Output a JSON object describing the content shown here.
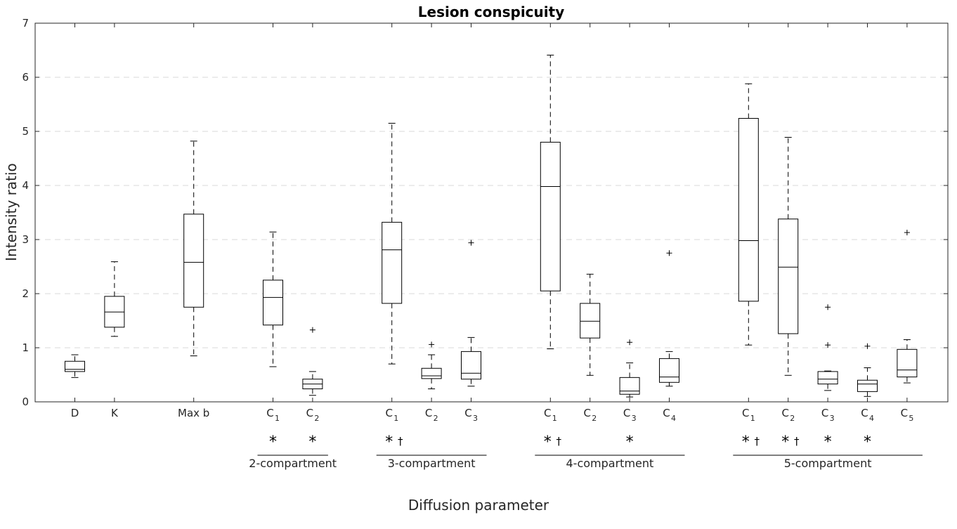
{
  "chart_data": {
    "type": "box",
    "title": "Lesion conspicuity",
    "xlabel": "Diffusion parameter",
    "ylabel": "Intensity ratio",
    "ylim": [
      0,
      7
    ],
    "yticks": [
      0,
      1,
      2,
      3,
      4,
      5,
      6,
      7
    ],
    "grid": "horizontal dashed",
    "significance_legend": {
      "star": "*",
      "dagger": "†"
    },
    "categories": [
      {
        "id": "D",
        "label": "D",
        "sub": "",
        "pos": 1,
        "whisker_low": 0.45,
        "q1": 0.56,
        "median": 0.6,
        "q3": 0.75,
        "whisker_high": 0.87,
        "outliers": [],
        "marks": ""
      },
      {
        "id": "K",
        "label": "K",
        "sub": "",
        "pos": 2,
        "whisker_low": 1.21,
        "q1": 1.38,
        "median": 1.66,
        "q3": 1.95,
        "whisker_high": 2.59,
        "outliers": [],
        "marks": ""
      },
      {
        "id": "Maxb",
        "label": "Max b",
        "sub": "",
        "pos": 4,
        "whisker_low": 0.85,
        "q1": 1.75,
        "median": 2.58,
        "q3": 3.47,
        "whisker_high": 4.82,
        "outliers": [],
        "marks": ""
      },
      {
        "id": "c2_C1",
        "label": "C",
        "sub": "1",
        "pos": 6,
        "whisker_low": 0.65,
        "q1": 1.42,
        "median": 1.93,
        "q3": 2.25,
        "whisker_high": 3.14,
        "outliers": [],
        "marks": "*"
      },
      {
        "id": "c2_C2",
        "label": "C",
        "sub": "2",
        "pos": 7,
        "whisker_low": 0.12,
        "q1": 0.24,
        "median": 0.33,
        "q3": 0.42,
        "whisker_high": 0.56,
        "outliers": [
          1.33
        ],
        "marks": "*"
      },
      {
        "id": "c3_C1",
        "label": "C",
        "sub": "1",
        "pos": 9,
        "whisker_low": 0.7,
        "q1": 1.82,
        "median": 2.81,
        "q3": 3.32,
        "whisker_high": 5.15,
        "outliers": [],
        "marks": "*†"
      },
      {
        "id": "c3_C2",
        "label": "C",
        "sub": "2",
        "pos": 10,
        "whisker_low": 0.24,
        "q1": 0.43,
        "median": 0.48,
        "q3": 0.62,
        "whisker_high": 0.87,
        "outliers": [
          1.06
        ],
        "marks": ""
      },
      {
        "id": "c3_C3",
        "label": "C",
        "sub": "3",
        "pos": 11,
        "whisker_low": 0.29,
        "q1": 0.42,
        "median": 0.53,
        "q3": 0.93,
        "whisker_high": 1.19,
        "outliers": [
          2.94
        ],
        "marks": ""
      },
      {
        "id": "c4_C1",
        "label": "C",
        "sub": "1",
        "pos": 13,
        "whisker_low": 0.98,
        "q1": 2.05,
        "median": 3.98,
        "q3": 4.8,
        "whisker_high": 6.41,
        "outliers": [],
        "marks": "*†"
      },
      {
        "id": "c4_C2",
        "label": "C",
        "sub": "2",
        "pos": 14,
        "whisker_low": 0.49,
        "q1": 1.18,
        "median": 1.49,
        "q3": 1.82,
        "whisker_high": 2.36,
        "outliers": [],
        "marks": ""
      },
      {
        "id": "c4_C3",
        "label": "C",
        "sub": "3",
        "pos": 15,
        "whisker_low": 0.09,
        "q1": 0.14,
        "median": 0.2,
        "q3": 0.45,
        "whisker_high": 0.72,
        "outliers": [
          1.1
        ],
        "marks": "*"
      },
      {
        "id": "c4_C4",
        "label": "C",
        "sub": "4",
        "pos": 16,
        "whisker_low": 0.29,
        "q1": 0.36,
        "median": 0.46,
        "q3": 0.8,
        "whisker_high": 0.93,
        "outliers": [
          2.75
        ],
        "marks": ""
      },
      {
        "id": "c5_C1",
        "label": "C",
        "sub": "1",
        "pos": 18,
        "whisker_low": 1.05,
        "q1": 1.86,
        "median": 2.98,
        "q3": 5.24,
        "whisker_high": 5.88,
        "outliers": [],
        "marks": "*†"
      },
      {
        "id": "c5_C2",
        "label": "C",
        "sub": "2",
        "pos": 19,
        "whisker_low": 0.49,
        "q1": 1.26,
        "median": 2.49,
        "q3": 3.38,
        "whisker_high": 4.89,
        "outliers": [],
        "marks": "*†"
      },
      {
        "id": "c5_C3",
        "label": "C",
        "sub": "3",
        "pos": 20,
        "whisker_low": 0.21,
        "q1": 0.33,
        "median": 0.42,
        "q3": 0.56,
        "whisker_high": 0.57,
        "outliers": [
          1.05,
          1.75
        ],
        "marks": "*"
      },
      {
        "id": "c5_C4",
        "label": "C",
        "sub": "4",
        "pos": 21,
        "whisker_low": 0.1,
        "q1": 0.19,
        "median": 0.33,
        "q3": 0.4,
        "whisker_high": 0.63,
        "outliers": [
          1.03
        ],
        "marks": "*"
      },
      {
        "id": "c5_C5",
        "label": "C",
        "sub": "5",
        "pos": 22,
        "whisker_low": 0.35,
        "q1": 0.46,
        "median": 0.59,
        "q3": 0.97,
        "whisker_high": 1.15,
        "outliers": [
          3.13
        ],
        "marks": ""
      }
    ],
    "groups": [
      {
        "label": "2-compartment",
        "from_pos": 6,
        "to_pos": 7
      },
      {
        "label": "3-compartment",
        "from_pos": 9,
        "to_pos": 11
      },
      {
        "label": "4-compartment",
        "from_pos": 13,
        "to_pos": 16
      },
      {
        "label": "5-compartment",
        "from_pos": 18,
        "to_pos": 22
      }
    ]
  }
}
